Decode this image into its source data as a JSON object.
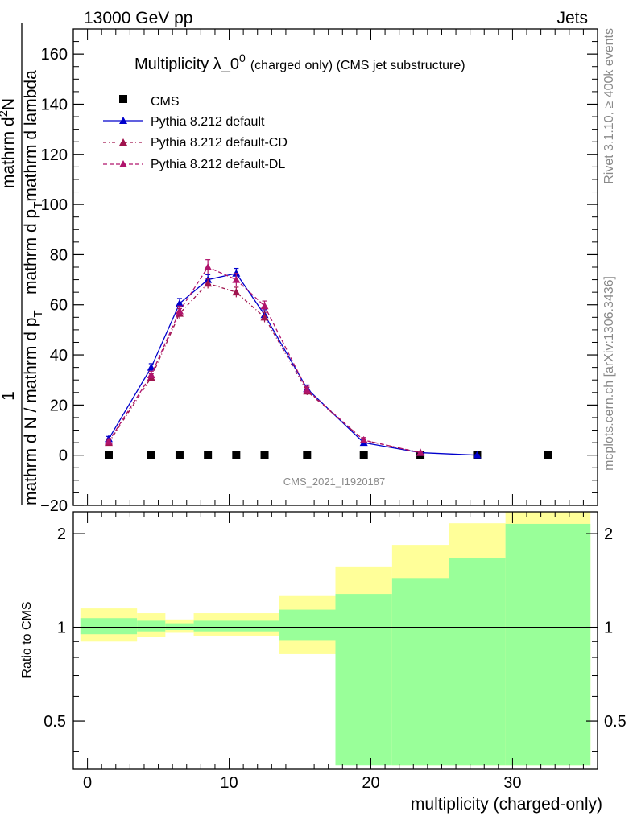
{
  "header": {
    "left": "13000 GeV pp",
    "right": "Jets"
  },
  "side_labels": {
    "rivet": "Rivet 3.1.10, ≥ 400k events",
    "mcplots": "mcplots.cern.ch [arXiv:1306.3436]"
  },
  "chart_data": [
    {
      "type": "line",
      "title": "Multiplicity λ_0",
      "title_sup": "0",
      "subtitle": "(charged only) (CMS jet substructure)",
      "watermark": "CMS_2021_I1920187",
      "ylabel_numerator": "1       mathrm d²N",
      "ylabel_num_line1": "1",
      "ylabel_num_line2": "mathrm d",
      "ylabel_num_sup": "2",
      "ylabel_num_line3": "N",
      "ylabel_den": "mathrm d N / mathrm d p",
      "ylabel_den_sub": "T",
      "ylabel_den2": "mathrm d p",
      "ylabel_den2_sub": "T",
      "ylabel_den3": "mathrm d lambda",
      "ylabel_frac_num": "1",
      "ylabel_frac_den": "mathrm d N / mathrm d p",
      "ylabel_frac_den_sub": "T",
      "ylabel_rest": "mathrm d",
      "ylabel_rest_sup": "2",
      "ylabel_rest2": "N",
      "ylabel_rest_den": "mathrm d p",
      "ylabel_rest_den_sub": "T",
      "ylabel_rest_den2": "mathrm d lambda",
      "xlim": [
        -1,
        36
      ],
      "ylim": [
        -20,
        170
      ],
      "yticks": [
        -20,
        0,
        20,
        40,
        60,
        80,
        100,
        120,
        140,
        160
      ],
      "series": [
        {
          "name": "CMS",
          "style": "marker",
          "color": "#000000",
          "x": [
            1.5,
            4.5,
            6.5,
            8.5,
            10.5,
            12.5,
            15.5,
            19.5,
            23.5,
            27.5,
            32.5
          ],
          "values": [
            0,
            0,
            0,
            0,
            0,
            0,
            0,
            0,
            0,
            0,
            0
          ]
        },
        {
          "name": "Pythia 8.212 default",
          "style": "solid",
          "color": "#0000cc",
          "x": [
            1.5,
            4.5,
            6.5,
            8.5,
            10.5,
            12.5,
            15.5,
            19.5,
            23.5,
            27.5
          ],
          "values": [
            6.5,
            35,
            60.5,
            70,
            72.5,
            56,
            26.5,
            5,
            1,
            0
          ],
          "errors": [
            1,
            1.5,
            2,
            2,
            2,
            2,
            1.5,
            1,
            0.5,
            0.2
          ]
        },
        {
          "name": "Pythia 8.212 default-CD",
          "style": "dashdot",
          "color": "#a0144e",
          "x": [
            1.5,
            4.5,
            6.5,
            8.5,
            10.5,
            12.5,
            15.5,
            19.5,
            23.5
          ],
          "values": [
            5,
            31,
            56.5,
            68.5,
            65,
            55,
            25.5,
            6,
            1
          ],
          "errors": [
            1,
            1.5,
            2,
            2,
            2,
            2,
            1.5,
            1,
            0.5
          ]
        },
        {
          "name": "Pythia 8.212 default-DL",
          "style": "dashed",
          "color": "#b0146c",
          "x": [
            1.5,
            4.5,
            6.5,
            8.5,
            10.5,
            12.5,
            15.5,
            19.5,
            23.5
          ],
          "values": [
            5.5,
            32,
            57.5,
            75,
            70,
            59.5,
            26,
            6,
            1
          ],
          "errors": [
            1,
            1.5,
            2,
            3,
            2.5,
            2,
            1.5,
            1,
            0.5
          ]
        }
      ]
    },
    {
      "type": "area",
      "ylabel": "Ratio to CMS",
      "xlabel": "multiplicity (charged-only)",
      "xlim": [
        -1,
        36
      ],
      "ylim": [
        0.35,
        2.35
      ],
      "yticks": [
        0.5,
        1,
        2
      ],
      "ytick_labels": [
        "0.5",
        "1",
        "2"
      ],
      "xticks": [
        0,
        10,
        20,
        30
      ],
      "xtick_labels": [
        "0",
        "10",
        "20",
        "30"
      ],
      "bins_edges": [
        -0.5,
        3.5,
        5.5,
        7.5,
        13.5,
        17.5,
        21.5,
        25.5,
        29.5,
        35.5
      ],
      "band_inner": [
        [
          0.95,
          1.07
        ],
        [
          0.97,
          1.05
        ],
        [
          0.98,
          1.03
        ],
        [
          0.97,
          1.05
        ],
        [
          0.91,
          1.14
        ],
        [
          0.36,
          1.28
        ],
        [
          0.36,
          1.44
        ],
        [
          0.36,
          1.67
        ],
        [
          0.36,
          2.15
        ]
      ],
      "band_outer": [
        [
          0.9,
          1.15
        ],
        [
          0.93,
          1.11
        ],
        [
          0.96,
          1.06
        ],
        [
          0.94,
          1.11
        ],
        [
          0.82,
          1.26
        ],
        [
          0.53,
          1.56
        ],
        [
          0.36,
          1.84
        ],
        [
          0.36,
          2.16
        ],
        [
          0.36,
          2.35
        ]
      ],
      "colors": {
        "inner": "#99ff99",
        "outer": "#ffff99",
        "ref": "#000000"
      }
    }
  ]
}
